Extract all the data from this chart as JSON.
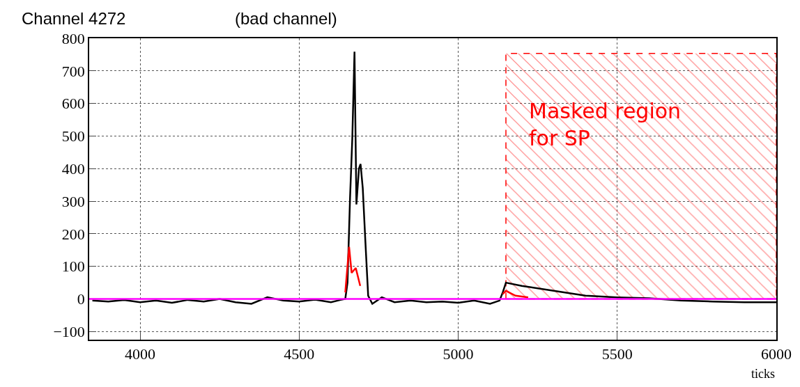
{
  "chart_data": {
    "type": "line",
    "title": "Channel 4272",
    "subtitle": "(bad channel)",
    "xlabel": "ticks",
    "xlim": [
      3840,
      6000
    ],
    "xticks": [
      4000,
      4500,
      5000,
      5500,
      6000
    ],
    "ylim": [
      -125,
      800
    ],
    "yticks": [
      -100,
      0,
      100,
      200,
      300,
      400,
      500,
      600,
      700,
      800
    ],
    "grid": true,
    "marker": "none",
    "line_style": "solid",
    "series": [
      {
        "color": "#000000",
        "x": [
          3850,
          3900,
          3950,
          4000,
          4050,
          4100,
          4150,
          4200,
          4250,
          4300,
          4350,
          4400,
          4450,
          4500,
          4550,
          4600,
          4630,
          4645,
          4652,
          4660,
          4667,
          4674,
          4680,
          4688,
          4693,
          4700,
          4708,
          4717,
          4730,
          4760,
          4800,
          4850,
          4900,
          4950,
          5000,
          5050,
          5100,
          5130,
          5140,
          5150,
          5200,
          5300,
          5400,
          5500,
          5600,
          5700,
          5800,
          5900,
          6000
        ],
        "values": [
          -5,
          -8,
          -3,
          -10,
          -5,
          -12,
          -3,
          -8,
          0,
          -10,
          -15,
          5,
          -5,
          -8,
          -2,
          -10,
          -3,
          0,
          50,
          310,
          490,
          759,
          290,
          400,
          414,
          340,
          180,
          10,
          -15,
          5,
          -10,
          -5,
          -10,
          -8,
          -12,
          -5,
          -15,
          -5,
          20,
          50,
          40,
          25,
          10,
          5,
          2,
          -5,
          -8,
          -10,
          -10
        ]
      },
      {
        "color": "#ff0000",
        "x": [
          4645,
          4657,
          4665,
          4678,
          4692,
          4700,
          5140,
          5150,
          5180,
          5220
        ],
        "values": [
          20,
          160,
          80,
          95,
          40,
          null,
          15,
          25,
          10,
          5
        ]
      }
    ],
    "ref_lines": [
      {
        "axis": "y",
        "value": 0,
        "color": "#ff00ff"
      }
    ],
    "bands": [
      {
        "axis": "x",
        "from": 5150,
        "to": 6000,
        "label": "Masked region for SP",
        "color": "#ff0000"
      }
    ]
  }
}
